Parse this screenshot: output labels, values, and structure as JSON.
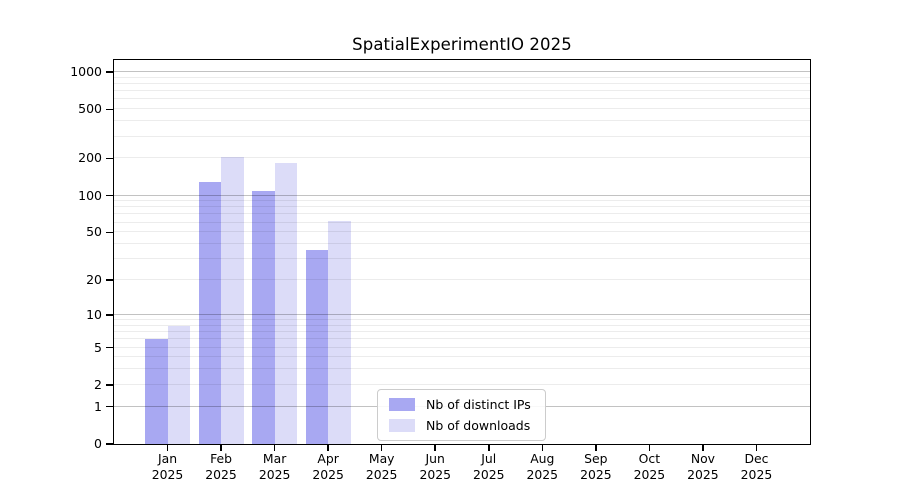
{
  "chart_data": {
    "type": "bar",
    "title": "SpatialExperimentIO 2025",
    "year": "2025",
    "categories": [
      "Jan",
      "Feb",
      "Mar",
      "Apr",
      "May",
      "Jun",
      "Jul",
      "Aug",
      "Sep",
      "Oct",
      "Nov",
      "Dec"
    ],
    "series": [
      {
        "name": "Nb of distinct IPs",
        "color": "#a8a8f2",
        "values": [
          6,
          128,
          108,
          36,
          0,
          0,
          0,
          0,
          0,
          0,
          0,
          0
        ]
      },
      {
        "name": "Nb of downloads",
        "color": "#dcdcf8",
        "values": [
          8,
          205,
          183,
          62,
          0,
          0,
          0,
          0,
          0,
          0,
          0,
          0
        ]
      }
    ],
    "y_axis": {
      "scale": "log1p",
      "ticks": [
        1000,
        500,
        200,
        100,
        50,
        20,
        10,
        5,
        2,
        1,
        0
      ],
      "ylim": [
        0,
        1250
      ],
      "major_gridlines": [
        1,
        10,
        100,
        1000
      ],
      "minor_gridline_decades": [
        1,
        10,
        100
      ]
    },
    "x_axis": {
      "tick_label_line2": "2025"
    },
    "legend_position": "inside-bottom-center",
    "grid": true
  },
  "colors": {
    "background": "#ffffff",
    "axis": "#000000",
    "bar_distinct_ips": "#a8a8f2",
    "bar_downloads": "#dcdcf8",
    "major_grid": "rgba(0,0,0,0.24)",
    "minor_grid": "rgba(0,0,0,0.075)",
    "legend_border": "#cccccc"
  }
}
